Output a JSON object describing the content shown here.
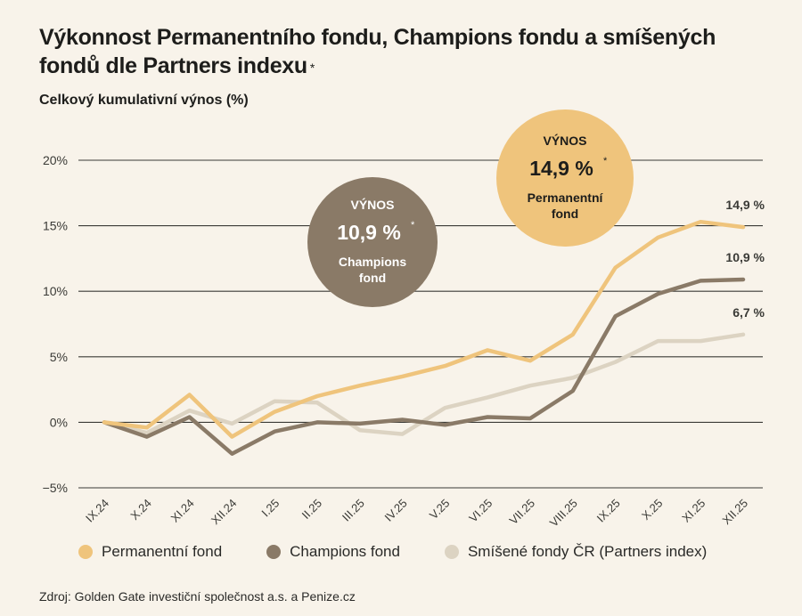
{
  "header": {
    "title": "Výkonnost Permanentního fondu, Champions fondu a smíšených fondů dle Partners indexu",
    "title_mark": "*",
    "subtitle": "Celkový kumulativní výnos (%)"
  },
  "chart_data": {
    "type": "line",
    "title": "Výkonnost Permanentního fondu, Champions fondu a smíšených fondů dle Partners indexu",
    "ylabel": "Celkový kumulativní výnos (%)",
    "xlabel": "",
    "categories": [
      "IX.24",
      "X.24",
      "XI.24",
      "XII.24",
      "I.25",
      "II.25",
      "III.25",
      "IV.25",
      "V.25",
      "VI.25",
      "VII.25",
      "VIII.25",
      "IX.25",
      "X.25",
      "XI.25",
      "XII.25"
    ],
    "ylim": [
      -5,
      20
    ],
    "yticks": [
      -5,
      0,
      5,
      10,
      15,
      20
    ],
    "ytick_labels": [
      "−5%",
      "0%",
      "5%",
      "10%",
      "15%",
      "20%"
    ],
    "grid": true,
    "legend_position": "bottom",
    "series": [
      {
        "name": "Permanentní fond",
        "color": "#efc47c",
        "values": [
          0,
          -0.4,
          2.1,
          -1.1,
          0.8,
          2.0,
          2.8,
          3.5,
          4.3,
          5.5,
          4.7,
          6.7,
          11.8,
          14.1,
          15.3,
          14.9
        ],
        "end_label": "14,9 %"
      },
      {
        "name": "Champions fond",
        "color": "#8a7a67",
        "values": [
          0,
          -1.1,
          0.4,
          -2.4,
          -0.7,
          0.0,
          -0.1,
          0.2,
          -0.2,
          0.4,
          0.3,
          2.4,
          8.1,
          9.8,
          10.8,
          10.9
        ],
        "end_label": "10,9 %"
      },
      {
        "name": "Smíšené fondy ČR (Partners index)",
        "color": "#dcd3c2",
        "values": [
          0,
          -0.8,
          0.9,
          -0.1,
          1.6,
          1.5,
          -0.6,
          -0.9,
          1.1,
          1.9,
          2.8,
          3.4,
          4.6,
          6.2,
          6.2,
          6.7
        ],
        "end_label": "6,7 %"
      }
    ],
    "annotations": [
      {
        "id": "permanent",
        "heading": "VÝNOS",
        "value": "14,9 %",
        "mark": "*",
        "line1": "Permanentní",
        "line2": "fond",
        "fill": "#efc47c",
        "text_color": "#1d1d1b"
      },
      {
        "id": "champions",
        "heading": "VÝNOS",
        "value": "10,9 %",
        "mark": "*",
        "line1": "Champions",
        "line2": "fond",
        "fill": "#8a7a67",
        "text_color": "#ffffff"
      }
    ]
  },
  "legend": [
    {
      "label": "Permanentní fond",
      "color": "#efc47c"
    },
    {
      "label": "Champions fond",
      "color": "#8a7a67"
    },
    {
      "label": "Smíšené fondy ČR (Partners index)",
      "color": "#dcd3c2"
    }
  ],
  "footer": {
    "source": "Zdroj: Golden Gate investiční společnost a.s. a Penize.cz"
  }
}
